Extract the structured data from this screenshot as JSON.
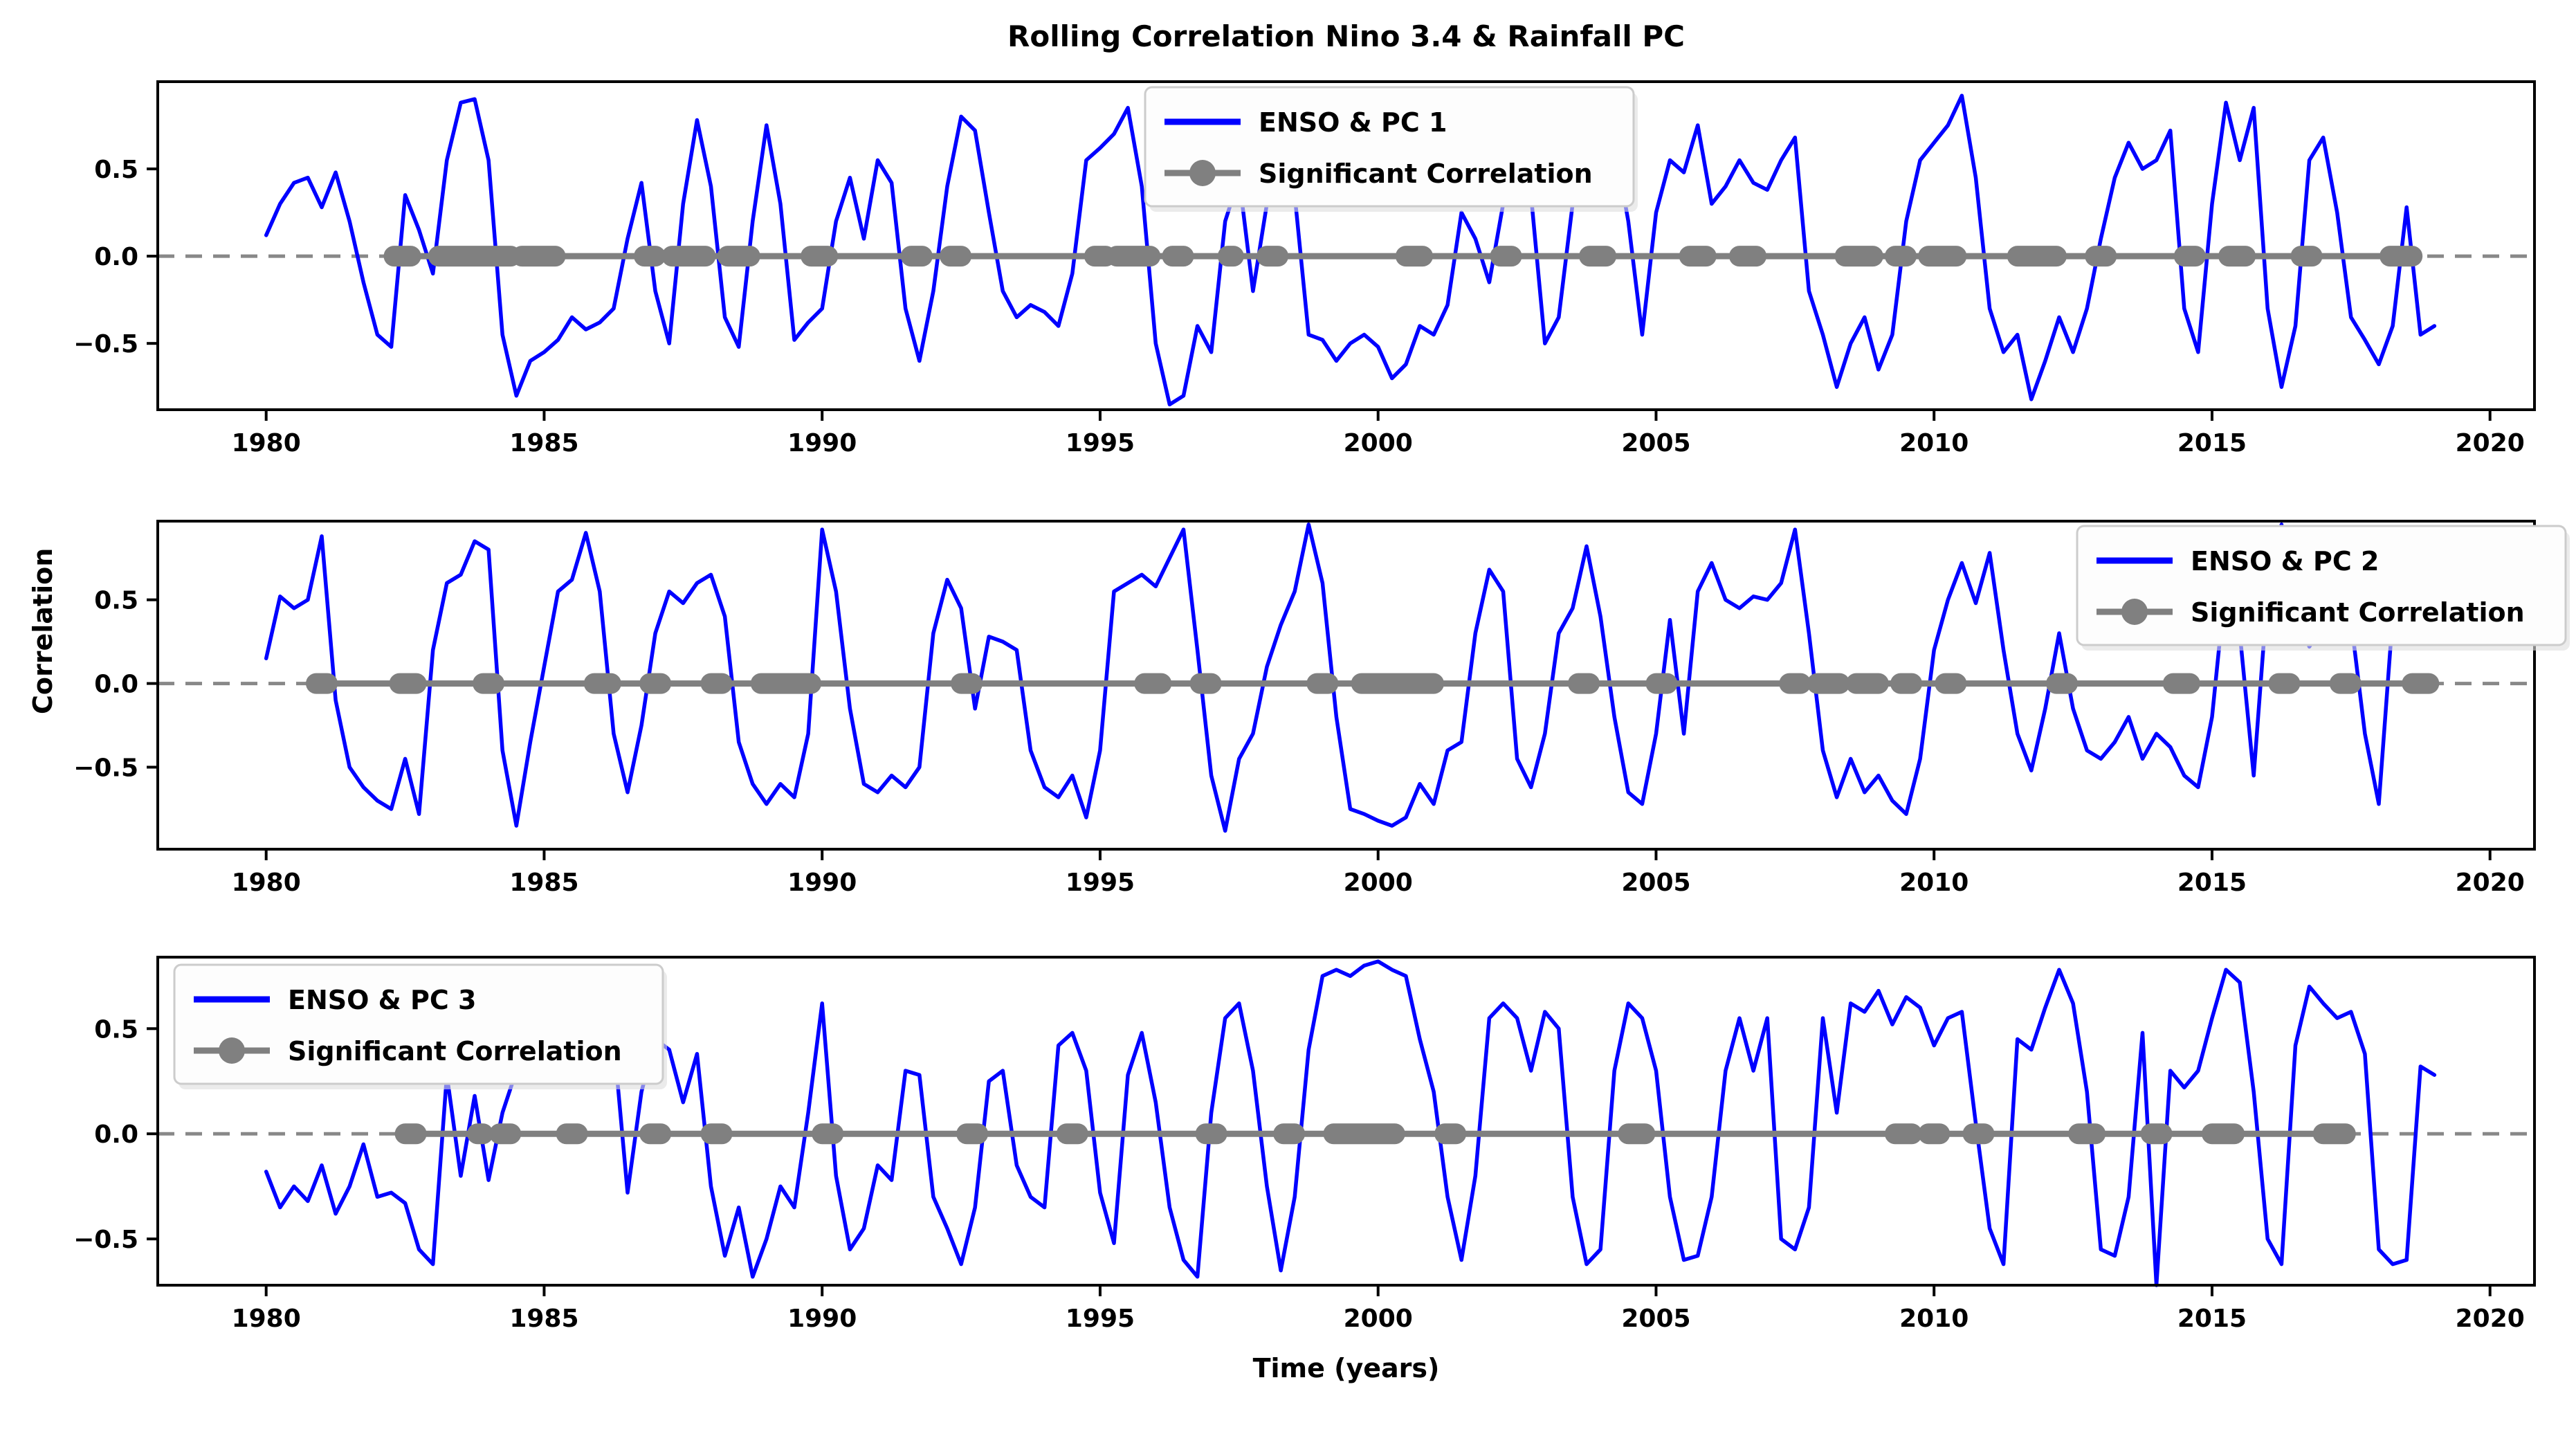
{
  "figure": {
    "title": "Rolling Correlation Nino 3.4 & Rainfall PC",
    "xlabel": "Time (years)",
    "ylabel": "Correlation"
  },
  "colors": {
    "line": "#0000ff",
    "significant": "#808080",
    "zero_dashed": "#888888",
    "spine": "#000000",
    "text": "#000000",
    "legend_bg": "#fdfdfd",
    "legend_border": "#cccccc",
    "background": "#ffffff"
  },
  "axes": {
    "x_ticks": [
      1980,
      1985,
      1990,
      1995,
      2000,
      2005,
      2010,
      2015,
      2020
    ],
    "y_ticks": [
      0.5,
      0.0,
      -0.5
    ],
    "y_tick_labels": [
      "0.5",
      "0.0",
      "−0.5"
    ],
    "xlim": [
      1978.05,
      2020.8
    ]
  },
  "chart_data": [
    {
      "type": "line",
      "legend_position": "upper-center-left",
      "ylim": [
        -0.88,
        1.0
      ],
      "x_start": 1980.0,
      "x_step": 0.25,
      "x_end": 2019.0,
      "series": [
        {
          "name": "ENSO & PC 1",
          "values": [
            0.12,
            0.3,
            0.42,
            0.45,
            0.28,
            0.48,
            0.2,
            -0.15,
            -0.45,
            -0.52,
            0.35,
            0.15,
            -0.1,
            0.55,
            0.88,
            0.9,
            0.55,
            -0.45,
            -0.8,
            -0.6,
            -0.55,
            -0.48,
            -0.35,
            -0.42,
            -0.38,
            -0.3,
            0.1,
            0.42,
            -0.2,
            -0.5,
            0.3,
            0.78,
            0.4,
            -0.35,
            -0.52,
            0.2,
            0.75,
            0.3,
            -0.48,
            -0.38,
            -0.3,
            0.2,
            0.45,
            0.1,
            0.55,
            0.42,
            -0.3,
            -0.6,
            -0.2,
            0.4,
            0.8,
            0.72,
            0.25,
            -0.2,
            -0.35,
            -0.28,
            -0.32,
            -0.4,
            -0.1,
            0.55,
            0.62,
            0.7,
            0.85,
            0.4,
            -0.5,
            -0.85,
            -0.8,
            -0.4,
            -0.55,
            0.2,
            0.45,
            -0.2,
            0.3,
            0.88,
            0.35,
            -0.45,
            -0.48,
            -0.6,
            -0.5,
            -0.45,
            -0.52,
            -0.7,
            -0.62,
            -0.4,
            -0.45,
            -0.28,
            0.25,
            0.1,
            -0.15,
            0.3,
            0.68,
            0.35,
            -0.5,
            -0.35,
            0.3,
            0.55,
            0.35,
            0.65,
            0.2,
            -0.45,
            0.25,
            0.55,
            0.48,
            0.75,
            0.3,
            0.4,
            0.55,
            0.42,
            0.38,
            0.55,
            0.68,
            -0.2,
            -0.45,
            -0.75,
            -0.5,
            -0.35,
            -0.65,
            -0.45,
            0.2,
            0.55,
            0.65,
            0.75,
            0.92,
            0.45,
            -0.3,
            -0.55,
            -0.45,
            -0.82,
            -0.6,
            -0.35,
            -0.55,
            -0.3,
            0.1,
            0.45,
            0.65,
            0.5,
            0.55,
            0.72,
            -0.3,
            -0.55,
            0.3,
            0.88,
            0.55,
            0.85,
            -0.3,
            -0.75,
            -0.4,
            0.55,
            0.68,
            0.25,
            -0.35,
            -0.48,
            -0.62,
            -0.4,
            0.28,
            -0.45,
            -0.4
          ]
        },
        {
          "name": "Significant Correlation",
          "segments": [
            [
              1982.3,
              1982.6
            ],
            [
              1983.1,
              1984.4
            ],
            [
              1984.6,
              1985.2
            ],
            [
              1986.8,
              1987.0
            ],
            [
              1987.3,
              1987.9
            ],
            [
              1988.3,
              1988.7
            ],
            [
              1989.8,
              1990.1
            ],
            [
              1991.6,
              1991.8
            ],
            [
              1992.3,
              1992.5
            ],
            [
              1994.9,
              1995.1
            ],
            [
              1995.3,
              1995.9
            ],
            [
              1996.3,
              1996.5
            ],
            [
              1997.3,
              1997.4
            ],
            [
              1998.0,
              1998.2
            ],
            [
              2000.5,
              2000.8
            ],
            [
              2002.2,
              2002.4
            ],
            [
              2003.8,
              2004.1
            ],
            [
              2005.6,
              2005.9
            ],
            [
              2006.5,
              2006.8
            ],
            [
              2008.4,
              2008.9
            ],
            [
              2009.3,
              2009.5
            ],
            [
              2009.9,
              2010.4
            ],
            [
              2011.5,
              2012.2
            ],
            [
              2012.9,
              2013.1
            ],
            [
              2014.5,
              2014.7
            ],
            [
              2015.3,
              2015.6
            ],
            [
              2016.6,
              2016.8
            ],
            [
              2018.2,
              2018.6
            ]
          ]
        }
      ]
    },
    {
      "type": "line",
      "legend_position": "upper-right",
      "ylim": [
        -0.99,
        0.97
      ],
      "x_start": 1980.0,
      "x_step": 0.25,
      "x_end": 2019.0,
      "series": [
        {
          "name": "ENSO & PC 2",
          "values": [
            0.15,
            0.52,
            0.45,
            0.5,
            0.88,
            -0.1,
            -0.5,
            -0.62,
            -0.7,
            -0.75,
            -0.45,
            -0.78,
            0.2,
            0.6,
            0.65,
            0.85,
            0.8,
            -0.4,
            -0.85,
            -0.35,
            0.1,
            0.55,
            0.62,
            0.9,
            0.55,
            -0.3,
            -0.65,
            -0.25,
            0.3,
            0.55,
            0.48,
            0.6,
            0.65,
            0.4,
            -0.35,
            -0.6,
            -0.72,
            -0.6,
            -0.68,
            -0.3,
            0.92,
            0.55,
            -0.15,
            -0.6,
            -0.65,
            -0.55,
            -0.62,
            -0.5,
            0.3,
            0.62,
            0.45,
            -0.15,
            0.28,
            0.25,
            0.2,
            -0.4,
            -0.62,
            -0.68,
            -0.55,
            -0.8,
            -0.4,
            0.55,
            0.6,
            0.65,
            0.58,
            0.75,
            0.92,
            0.2,
            -0.55,
            -0.88,
            -0.45,
            -0.3,
            0.1,
            0.35,
            0.55,
            0.95,
            0.6,
            -0.2,
            -0.75,
            -0.78,
            -0.82,
            -0.85,
            -0.8,
            -0.6,
            -0.72,
            -0.4,
            -0.35,
            0.3,
            0.68,
            0.55,
            -0.45,
            -0.62,
            -0.3,
            0.3,
            0.45,
            0.82,
            0.4,
            -0.2,
            -0.65,
            -0.72,
            -0.3,
            0.38,
            -0.3,
            0.55,
            0.72,
            0.5,
            0.45,
            0.52,
            0.5,
            0.6,
            0.92,
            0.3,
            -0.4,
            -0.68,
            -0.45,
            -0.65,
            -0.55,
            -0.7,
            -0.78,
            -0.45,
            0.2,
            0.5,
            0.72,
            0.48,
            0.78,
            0.2,
            -0.3,
            -0.52,
            -0.15,
            0.3,
            -0.15,
            -0.4,
            -0.45,
            -0.35,
            -0.2,
            -0.45,
            -0.3,
            -0.38,
            -0.55,
            -0.62,
            -0.2,
            0.62,
            0.3,
            -0.55,
            0.55,
            0.95,
            0.45,
            0.22,
            0.35,
            0.28,
            0.38,
            -0.3,
            -0.72,
            0.4,
            0.82,
            0.35,
            0.3
          ]
        },
        {
          "name": "Significant Correlation",
          "segments": [
            [
              1980.9,
              1981.1
            ],
            [
              1982.4,
              1982.7
            ],
            [
              1983.9,
              1984.1
            ],
            [
              1985.9,
              1986.2
            ],
            [
              1986.9,
              1987.1
            ],
            [
              1988.0,
              1988.2
            ],
            [
              1988.9,
              1989.8
            ],
            [
              1992.5,
              1992.7
            ],
            [
              1995.8,
              1996.1
            ],
            [
              1996.8,
              1997.0
            ],
            [
              1998.9,
              1999.1
            ],
            [
              1999.7,
              2001.0
            ],
            [
              2003.6,
              2003.8
            ],
            [
              2005.0,
              2005.2
            ],
            [
              2007.4,
              2007.6
            ],
            [
              2007.9,
              2008.3
            ],
            [
              2008.6,
              2009.0
            ],
            [
              2009.4,
              2009.6
            ],
            [
              2010.2,
              2010.4
            ],
            [
              2012.2,
              2012.4
            ],
            [
              2014.3,
              2014.6
            ],
            [
              2016.2,
              2016.4
            ],
            [
              2017.3,
              2017.5
            ],
            [
              2018.6,
              2018.9
            ]
          ]
        }
      ]
    },
    {
      "type": "line",
      "legend_position": "upper-left",
      "ylim": [
        -0.72,
        0.84
      ],
      "x_start": 1980.0,
      "x_step": 0.25,
      "x_end": 2019.0,
      "series": [
        {
          "name": "ENSO & PC 3",
          "values": [
            -0.18,
            -0.35,
            -0.25,
            -0.32,
            -0.15,
            -0.38,
            -0.25,
            -0.05,
            -0.3,
            -0.28,
            -0.33,
            -0.55,
            -0.62,
            0.28,
            -0.2,
            0.18,
            -0.22,
            0.1,
            0.3,
            0.45,
            0.58,
            0.48,
            0.55,
            0.62,
            0.3,
            0.45,
            -0.28,
            0.2,
            0.45,
            0.4,
            0.15,
            0.38,
            -0.25,
            -0.58,
            -0.35,
            -0.68,
            -0.5,
            -0.25,
            -0.35,
            0.1,
            0.62,
            -0.2,
            -0.55,
            -0.45,
            -0.15,
            -0.22,
            0.3,
            0.28,
            -0.3,
            -0.45,
            -0.62,
            -0.35,
            0.25,
            0.3,
            -0.15,
            -0.3,
            -0.35,
            0.42,
            0.48,
            0.3,
            -0.28,
            -0.52,
            0.28,
            0.48,
            0.15,
            -0.35,
            -0.6,
            -0.68,
            0.1,
            0.55,
            0.62,
            0.3,
            -0.25,
            -0.65,
            -0.3,
            0.4,
            0.75,
            0.78,
            0.75,
            0.8,
            0.82,
            0.78,
            0.75,
            0.45,
            0.2,
            -0.3,
            -0.6,
            -0.2,
            0.55,
            0.62,
            0.55,
            0.3,
            0.58,
            0.5,
            -0.3,
            -0.62,
            -0.55,
            0.3,
            0.62,
            0.55,
            0.3,
            -0.3,
            -0.6,
            -0.58,
            -0.3,
            0.3,
            0.55,
            0.3,
            0.55,
            -0.5,
            -0.55,
            -0.35,
            0.55,
            0.1,
            0.62,
            0.58,
            0.68,
            0.52,
            0.65,
            0.6,
            0.42,
            0.55,
            0.58,
            0.05,
            -0.45,
            -0.62,
            0.45,
            0.4,
            0.6,
            0.78,
            0.62,
            0.2,
            -0.55,
            -0.58,
            -0.3,
            0.48,
            -0.72,
            0.3,
            0.22,
            0.3,
            0.55,
            0.78,
            0.72,
            0.2,
            -0.5,
            -0.62,
            0.42,
            0.7,
            0.62,
            0.55,
            0.58,
            0.38,
            -0.55,
            -0.62,
            -0.6,
            0.32,
            0.28
          ]
        },
        {
          "name": "Significant Correlation",
          "segments": [
            [
              1982.5,
              1982.7
            ],
            [
              1983.8,
              1983.9
            ],
            [
              1984.2,
              1984.4
            ],
            [
              1985.4,
              1985.6
            ],
            [
              1986.9,
              1987.1
            ],
            [
              1988.0,
              1988.2
            ],
            [
              1990.0,
              1990.2
            ],
            [
              1992.6,
              1992.8
            ],
            [
              1994.4,
              1994.6
            ],
            [
              1996.9,
              1997.1
            ],
            [
              1998.3,
              1998.5
            ],
            [
              1999.2,
              2000.3
            ],
            [
              2001.2,
              2001.4
            ],
            [
              2004.5,
              2004.8
            ],
            [
              2009.3,
              2009.6
            ],
            [
              2009.9,
              2010.1
            ],
            [
              2010.7,
              2010.9
            ],
            [
              2012.6,
              2012.9
            ],
            [
              2013.9,
              2014.1
            ],
            [
              2015.0,
              2015.4
            ],
            [
              2017.0,
              2017.4
            ]
          ]
        }
      ]
    }
  ]
}
